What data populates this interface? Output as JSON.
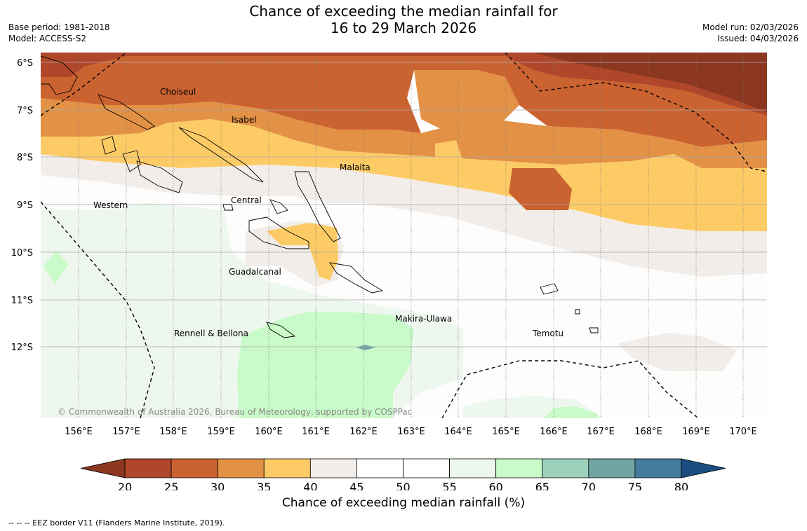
{
  "title": {
    "line1": "Chance of exceeding the median rainfall for",
    "line2": "16 to 29 March 2026"
  },
  "meta_left": [
    "Base period: 1981-2018",
    "Model: ACCESS-S2"
  ],
  "meta_right": [
    "Model run: 02/03/2026",
    "Issued: 04/03/2026"
  ],
  "lat_labels": [
    "6°S",
    "7°S",
    "8°S",
    "9°S",
    "10°S",
    "11°S",
    "12°S"
  ],
  "lon_labels": [
    "156°E",
    "157°E",
    "158°E",
    "159°E",
    "160°E",
    "161°E",
    "162°E",
    "163°E",
    "164°E",
    "165°E",
    "166°E",
    "167°E",
    "168°E",
    "169°E",
    "170°E"
  ],
  "places": {
    "choiseul": "Choiseul",
    "isabel": "Isabel",
    "malaita": "Malaita",
    "western": "Western",
    "central": "Central",
    "guadalcanal": "Guadalcanal",
    "makira": "Makira-Ulawa",
    "rennell": "Rennell & Bellona",
    "temotu": "Temotu"
  },
  "copyright": "© Commonwealth of Australia 2026, Bureau of Meteorology, supported by COSPPac",
  "legend": {
    "ticks": [
      "20",
      "25",
      "30",
      "35",
      "40",
      "45",
      "50",
      "55",
      "60",
      "65",
      "70",
      "75",
      "80"
    ],
    "colors": [
      "#8c3720",
      "#b0472a",
      "#cb6331",
      "#e39145",
      "#fdcb66",
      "#f2ede8",
      "#ffffff",
      "#ffffff",
      "#ecf6ec",
      "#c9fac9",
      "#9ed1bb",
      "#72a4a4",
      "#427c9a",
      "#1b4d80"
    ],
    "caption": "Chance of exceeding median rainfall (%)"
  },
  "footnote": "--  --  -- EEZ border V11 (Flanders Marine Institute, 2019)."
}
